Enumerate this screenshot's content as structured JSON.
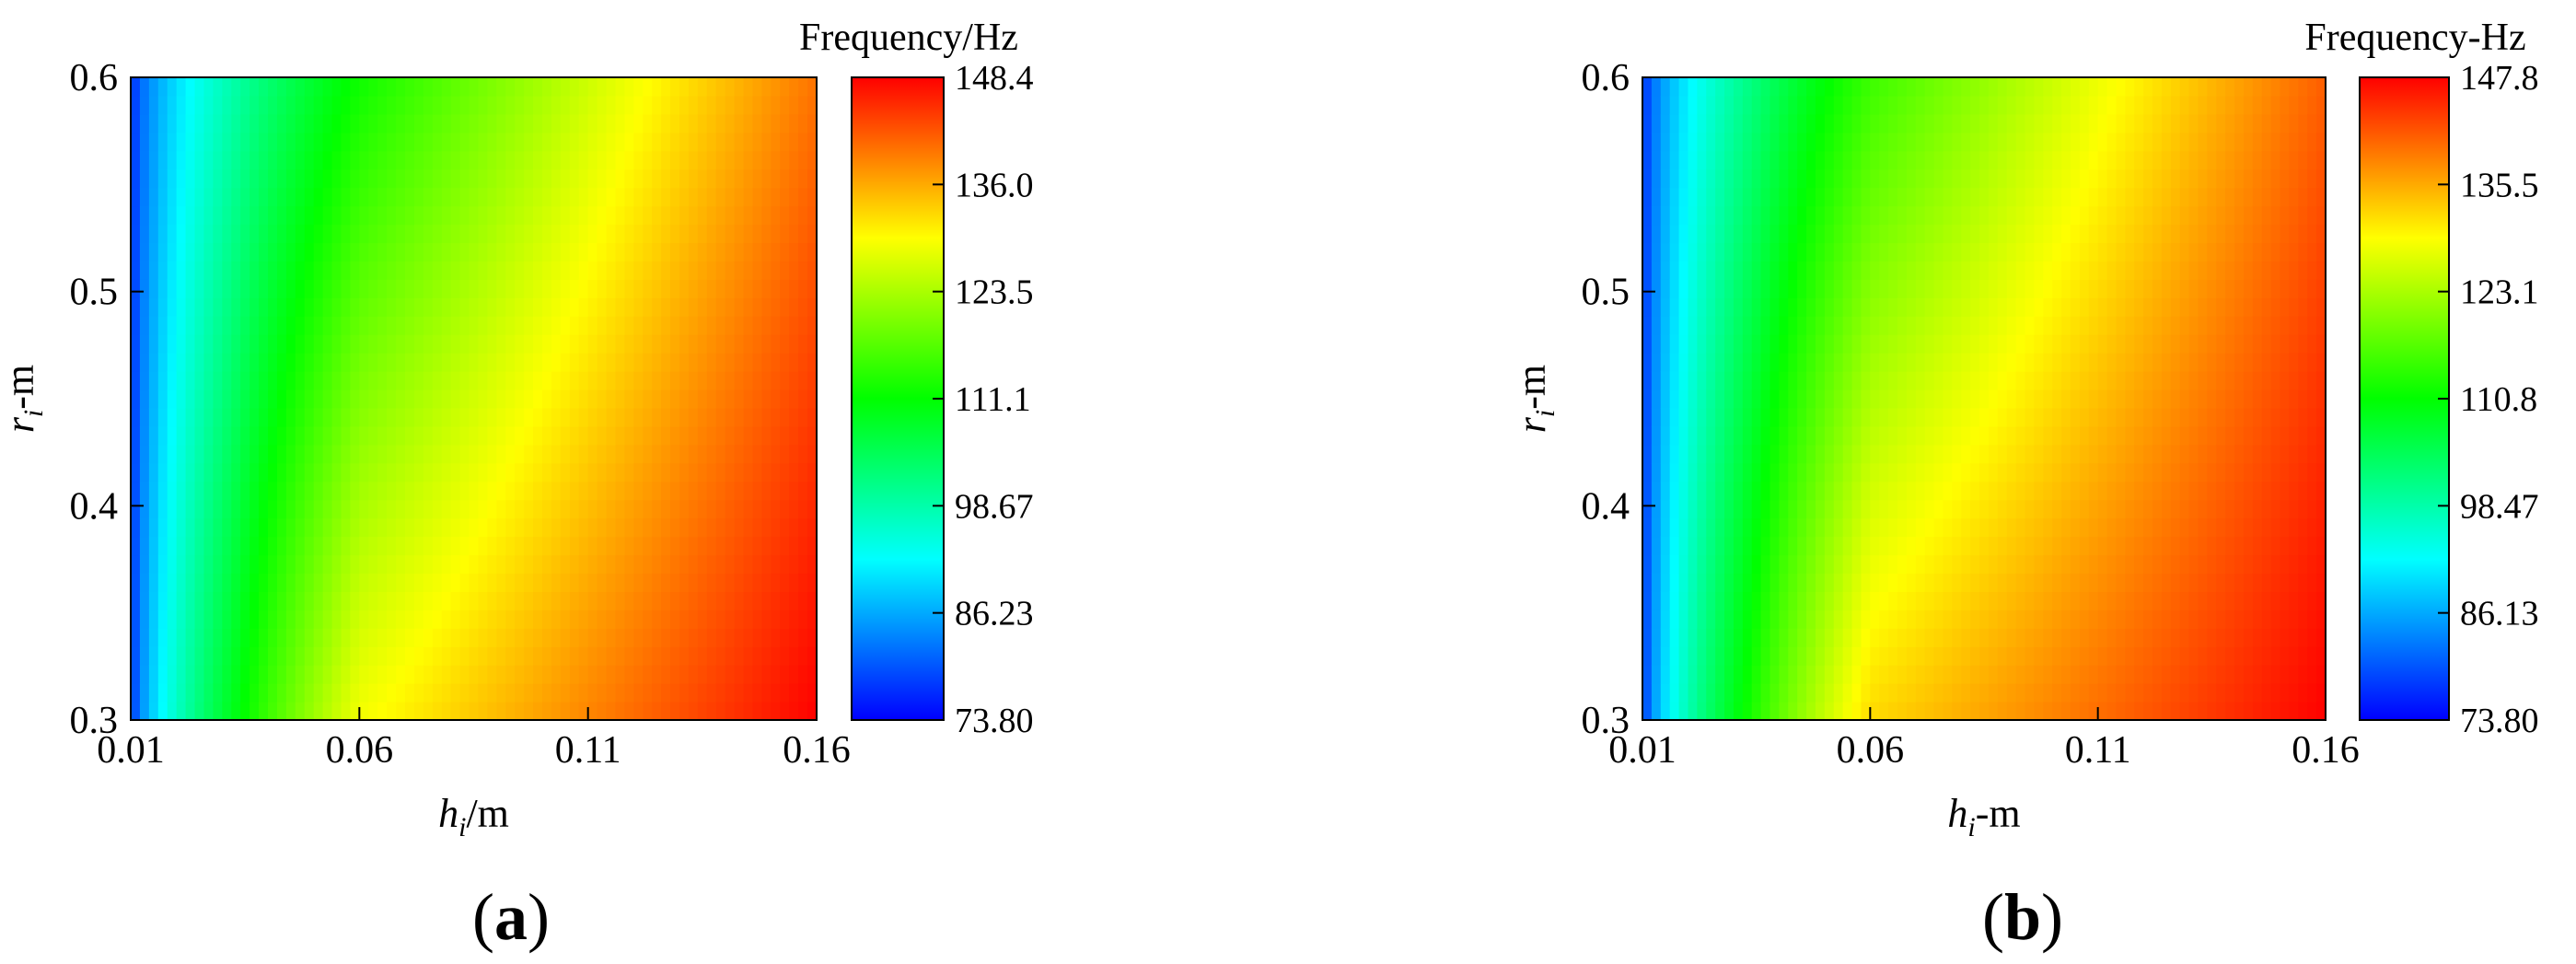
{
  "chart_data": [
    {
      "type": "heatmap",
      "panel_label": {
        "open": "(",
        "letter": "a",
        "close": ")"
      },
      "xlabel": {
        "var": "h",
        "sub": "i",
        "unit": "/m"
      },
      "ylabel": {
        "var": "r",
        "sub": "i",
        "unit": "-m"
      },
      "xlim": [
        0.01,
        0.16
      ],
      "ylim": [
        0.3,
        0.6
      ],
      "xticks": [
        "0.01",
        "0.06",
        "0.11",
        "0.16"
      ],
      "yticks": [
        "0.3",
        "0.4",
        "0.5",
        "0.6"
      ],
      "colorbar": {
        "title": "Frequency/Hz",
        "range": [
          73.8,
          148.4
        ],
        "ticks": [
          "73.80",
          "86.23",
          "98.67",
          "111.1",
          "123.5",
          "136.0",
          "148.4"
        ],
        "colormap": [
          "#0000ff",
          "#00ffff",
          "#00ff00",
          "#ffff00",
          "#ff0000"
        ]
      },
      "grid": false,
      "field_samples": [
        {
          "h": 0.01,
          "r": 0.3,
          "f": 73.8
        },
        {
          "h": 0.01,
          "r": 0.6,
          "f": 74.5
        },
        {
          "h": 0.06,
          "r": 0.3,
          "f": 129.0
        },
        {
          "h": 0.06,
          "r": 0.6,
          "f": 112.0
        },
        {
          "h": 0.16,
          "r": 0.3,
          "f": 148.4
        },
        {
          "h": 0.16,
          "r": 0.6,
          "f": 140.0
        }
      ]
    },
    {
      "type": "heatmap",
      "panel_label": {
        "open": "(",
        "letter": "b",
        "close": ")"
      },
      "xlabel": {
        "var": "h",
        "sub": "i",
        "unit": "-m"
      },
      "ylabel": {
        "var": "r",
        "sub": "i",
        "unit": "-m"
      },
      "xlim": [
        0.01,
        0.16
      ],
      "ylim": [
        0.3,
        0.6
      ],
      "xticks": [
        "0.01",
        "0.06",
        "0.11",
        "0.16"
      ],
      "yticks": [
        "0.3",
        "0.4",
        "0.5",
        "0.6"
      ],
      "colorbar": {
        "title": "Frequency-Hz",
        "range": [
          73.8,
          147.8
        ],
        "ticks": [
          "73.80",
          "86.13",
          "98.47",
          "110.8",
          "123.1",
          "135.5",
          "147.8"
        ],
        "colormap": [
          "#0000ff",
          "#00ffff",
          "#00ff00",
          "#ffff00",
          "#ff0000"
        ]
      },
      "grid": false,
      "field_samples": [
        {
          "h": 0.01,
          "r": 0.3,
          "f": 73.8
        },
        {
          "h": 0.01,
          "r": 0.6,
          "f": 74.5
        },
        {
          "h": 0.06,
          "r": 0.3,
          "f": 132.0
        },
        {
          "h": 0.06,
          "r": 0.6,
          "f": 115.0
        },
        {
          "h": 0.16,
          "r": 0.3,
          "f": 147.8
        },
        {
          "h": 0.16,
          "r": 0.6,
          "f": 141.0
        }
      ]
    }
  ]
}
